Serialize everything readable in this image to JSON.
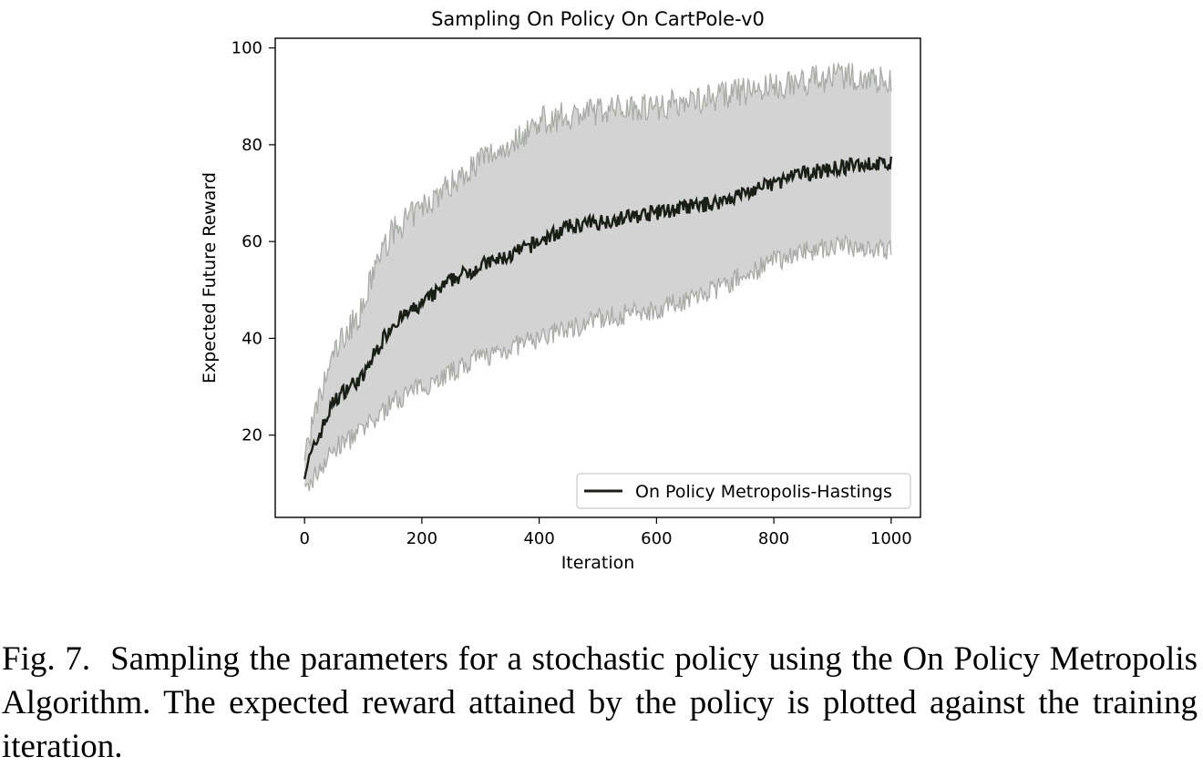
{
  "chart_data": {
    "type": "line",
    "title": "Sampling On Policy On CartPole-v0",
    "xlabel": "Iteration",
    "ylabel": "Expected Future Reward",
    "xlim": [
      -50,
      1050
    ],
    "ylim": [
      3,
      102
    ],
    "x_ticks": [
      0,
      200,
      400,
      600,
      800,
      1000
    ],
    "y_ticks": [
      20,
      40,
      60,
      80,
      100
    ],
    "grid": false,
    "legend_position": "lower-right",
    "colors": {
      "mean_line": "#1a1f16",
      "band_fill": "#d3d3d3",
      "band_edge": "#a9aba7"
    },
    "series": [
      {
        "name": "On Policy Metropolis-Hastings",
        "x": [
          0,
          25,
          50,
          75,
          100,
          120,
          150,
          200,
          250,
          300,
          350,
          400,
          450,
          500,
          550,
          600,
          650,
          700,
          750,
          800,
          850,
          900,
          950,
          1000
        ],
        "y": [
          12.5,
          20,
          27,
          30,
          32,
          37,
          43,
          47,
          52,
          55,
          57,
          60,
          63,
          64,
          65,
          66,
          67,
          68,
          70,
          72,
          74,
          75,
          76,
          76
        ],
        "lower": [
          8,
          13,
          17,
          19,
          21,
          23,
          27,
          30,
          33,
          36,
          38,
          40,
          42,
          44,
          45,
          46,
          48,
          50,
          53,
          56,
          58,
          59,
          59,
          58
        ],
        "upper": [
          16,
          27,
          37,
          42,
          46,
          55,
          62,
          67,
          72,
          77,
          80,
          85,
          86,
          87,
          88,
          88,
          89,
          90,
          91,
          92,
          93,
          94,
          94,
          93
        ]
      }
    ]
  },
  "caption": {
    "label": "Fig. 7.",
    "text": "Sampling the parameters for a stochastic policy using the On Policy Metropolis Algorithm. The expected reward attained by the policy is plotted against the training iteration."
  }
}
